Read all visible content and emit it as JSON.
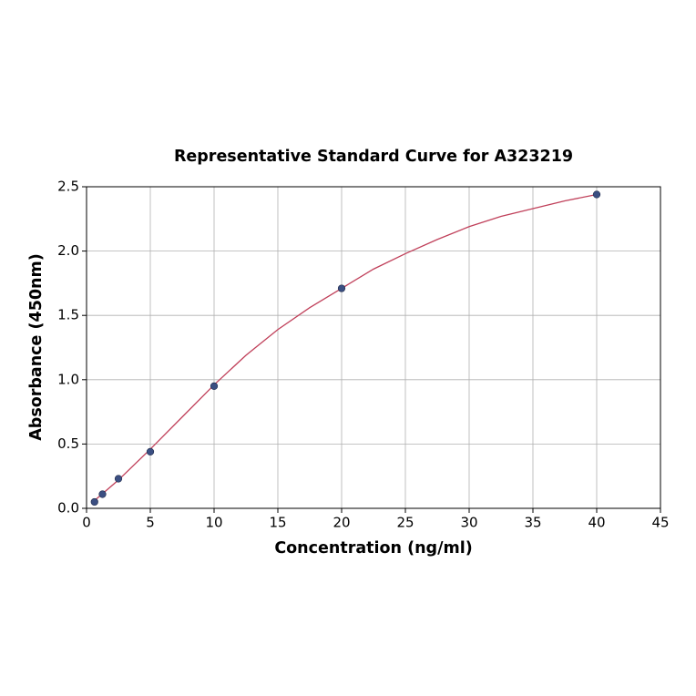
{
  "chart_data": {
    "type": "scatter",
    "title": "Representative Standard Curve for A323219",
    "xlabel": "Concentration (ng/ml)",
    "ylabel": "Absorbance (450nm)",
    "xlim": [
      0,
      45
    ],
    "ylim": [
      0,
      2.5
    ],
    "xticks": [
      0,
      5,
      10,
      15,
      20,
      25,
      30,
      35,
      40,
      45
    ],
    "yticks": [
      {
        "value": 0,
        "label": "0.0"
      },
      {
        "value": 0.5,
        "label": "0.5"
      },
      {
        "value": 1,
        "label": "1.0"
      },
      {
        "value": 1.5,
        "label": "1.5"
      },
      {
        "value": 2,
        "label": "2.0"
      },
      {
        "value": 2.5,
        "label": "2.5"
      }
    ],
    "grid": true,
    "series": [
      {
        "type": "line",
        "color": "#c0405a",
        "x": [
          0.625,
          2.5,
          5,
          7.5,
          10,
          12.5,
          15,
          17.5,
          20,
          22.5,
          25,
          27.5,
          30,
          32.5,
          35,
          37.5,
          40
        ],
        "values": [
          0.06,
          0.22,
          0.46,
          0.71,
          0.96,
          1.19,
          1.39,
          1.56,
          1.71,
          1.86,
          1.98,
          2.09,
          2.19,
          2.27,
          2.33,
          2.39,
          2.44
        ]
      },
      {
        "type": "scatter",
        "color": "#3b4f82",
        "x": [
          0.625,
          1.25,
          2.5,
          5,
          10,
          20,
          40
        ],
        "values": [
          0.05,
          0.11,
          0.23,
          0.44,
          0.95,
          1.71,
          2.44
        ]
      }
    ]
  }
}
